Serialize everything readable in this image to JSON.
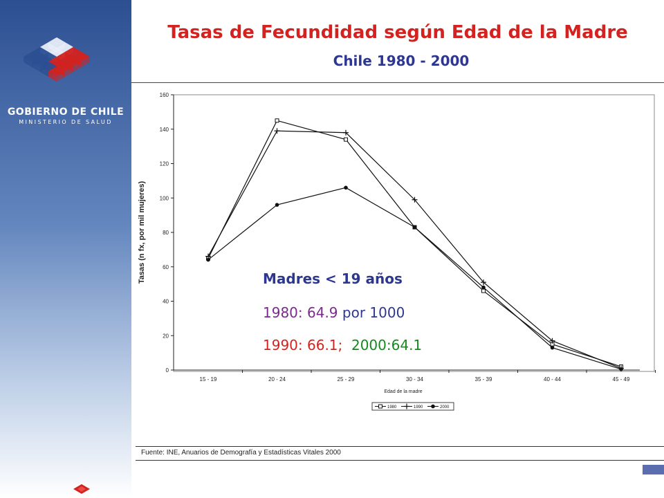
{
  "header": {
    "title": "Tasas de Fecundidad según Edad de la Madre",
    "subtitle": "Chile 1980 - 2000"
  },
  "brand": {
    "name": "GOBIERNO DE CHILE",
    "subname": "MINISTERIO DE SALUD",
    "colors": {
      "blue": "#2c4f92",
      "red": "#d3221f",
      "white": "#ffffff"
    }
  },
  "annotation": {
    "heading": "Madres < 19 años",
    "line1_year": "1980: 64.9",
    "line1_rest": " por 1000",
    "line2_a": "1990: 66.1;",
    "line2_b": "2000:64.1",
    "colors": {
      "heading": "#2e3790",
      "y1980": "#7a2a8a",
      "rest": "#2e3790",
      "y1990": "#d3221f",
      "y2000": "#138a1e"
    }
  },
  "footer": {
    "source": "Fuente: INE, Anuarios de Demografía y Estadísticas Vitales 2000"
  },
  "chart_data": {
    "type": "line",
    "ylabel": "Tasas (n fx, por mil mujeres)",
    "xlabel": "Edad de la madre",
    "ylim": [
      0,
      160
    ],
    "yticks": [
      0,
      20,
      40,
      60,
      80,
      100,
      120,
      140,
      160
    ],
    "categories": [
      "15 - 19",
      "20 - 24",
      "25 - 29",
      "30 - 34",
      "35 - 39",
      "40 - 44",
      "45 - 49"
    ],
    "grid": false,
    "legend": "bottom",
    "series": [
      {
        "name": "1980",
        "marker": "square",
        "values": [
          64.9,
          145,
          134,
          83,
          46,
          15,
          2
        ]
      },
      {
        "name": "1990",
        "marker": "plus",
        "values": [
          66.1,
          139,
          138,
          99,
          51,
          17,
          1
        ]
      },
      {
        "name": "2000",
        "marker": "dot",
        "values": [
          64.1,
          96,
          106,
          83,
          48,
          13,
          0.5
        ]
      }
    ]
  }
}
